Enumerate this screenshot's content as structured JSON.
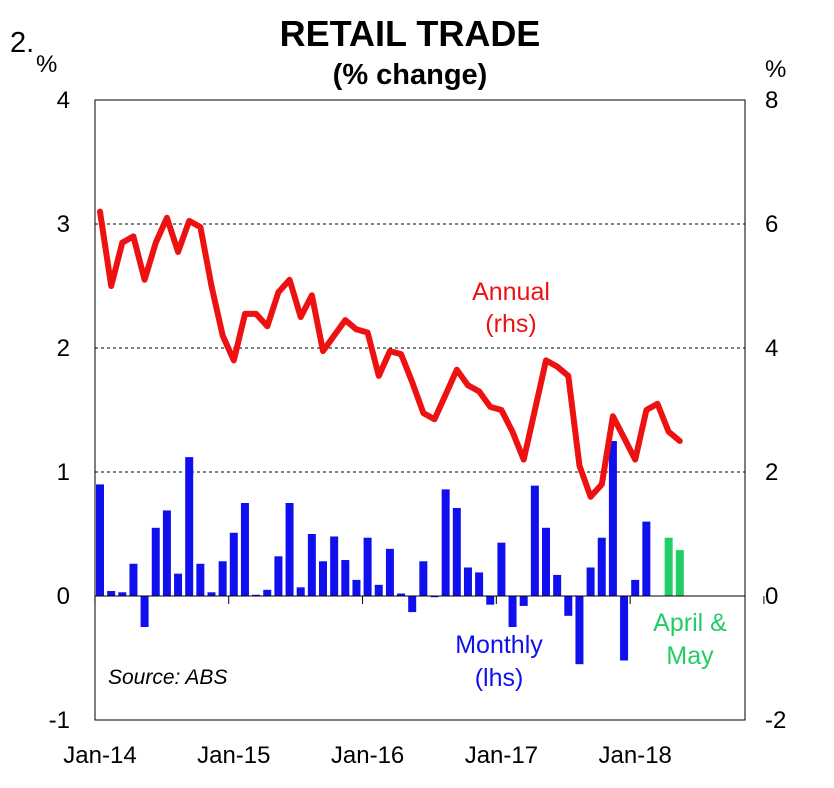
{
  "figure_number": "2.",
  "chart_data": {
    "type": "bar+line",
    "title": "RETAIL TRADE",
    "subtitle": "(% change)",
    "left_unit": "%",
    "right_unit": "%",
    "left_axis": {
      "min": -1,
      "max": 4,
      "ticks": [
        "-1",
        "0",
        "1",
        "2",
        "3",
        "4"
      ]
    },
    "right_axis": {
      "min": -2,
      "max": 8,
      "ticks": [
        "-2",
        "0",
        "2",
        "4",
        "6",
        "8"
      ]
    },
    "x_tick_labels": [
      "Jan-14",
      "Jan-15",
      "Jan-16",
      "Jan-17",
      "Jan-18"
    ],
    "start_month": "Jan-14",
    "gridlines": "horizontal dashed at 1, 2, 3",
    "series": [
      {
        "name": "Monthly",
        "axis": "lhs",
        "kind": "bar",
        "color": "#1010ee",
        "label_lines": [
          "Monthly",
          "(lhs)"
        ],
        "values": [
          0.9,
          0.04,
          0.03,
          0.26,
          -0.25,
          0.55,
          0.69,
          0.18,
          1.12,
          0.26,
          0.03,
          0.28,
          0.51,
          0.75,
          0.01,
          0.05,
          0.32,
          0.75,
          0.07,
          0.5,
          0.28,
          0.48,
          0.29,
          0.13,
          0.47,
          0.09,
          0.38,
          0.02,
          -0.13,
          0.28,
          -0.01,
          0.86,
          0.71,
          0.23,
          0.19,
          -0.07,
          0.43,
          -0.25,
          -0.08,
          0.89,
          0.55,
          0.17,
          -0.16,
          -0.55,
          0.23,
          0.47,
          1.25,
          -0.52,
          0.13,
          0.6
        ]
      },
      {
        "name": "April & May",
        "axis": "lhs",
        "kind": "bar",
        "color": "#22cc66",
        "label_lines": [
          "April &",
          "May"
        ],
        "start_index": 51,
        "values": [
          0.47,
          0.37
        ]
      },
      {
        "name": "Annual",
        "axis": "rhs",
        "kind": "line",
        "color": "#ee1111",
        "label_lines": [
          "Annual",
          "(rhs)"
        ],
        "values": [
          6.2,
          5.0,
          5.7,
          5.8,
          5.1,
          5.7,
          6.1,
          5.55,
          6.05,
          5.95,
          5.0,
          4.2,
          3.8,
          4.55,
          4.55,
          4.35,
          4.9,
          5.1,
          4.5,
          4.85,
          3.95,
          4.2,
          4.45,
          4.3,
          4.25,
          3.55,
          3.95,
          3.9,
          3.45,
          2.95,
          2.85,
          3.25,
          3.65,
          3.4,
          3.3,
          3.05,
          3.0,
          2.65,
          2.2,
          3.0,
          3.8,
          3.7,
          3.55,
          2.1,
          1.6,
          1.8,
          2.9,
          2.55,
          2.2,
          3.0,
          3.1,
          2.65,
          2.5
        ]
      }
    ],
    "source": "Source: ABS"
  }
}
